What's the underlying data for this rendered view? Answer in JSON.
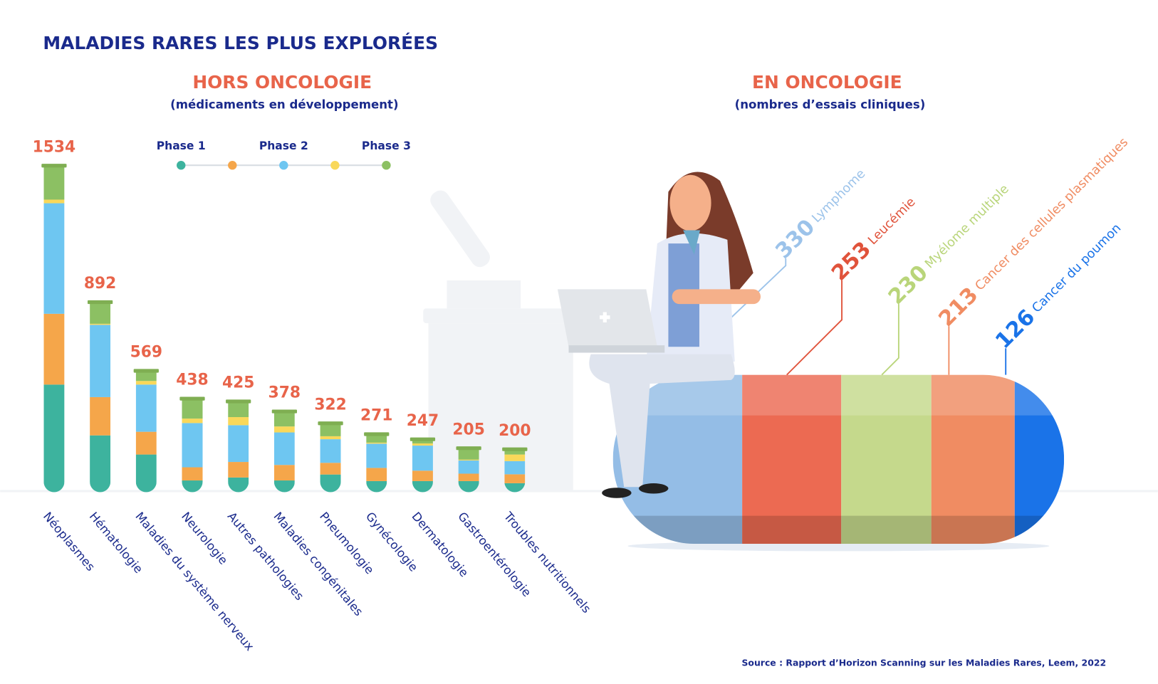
{
  "title": "MALADIES RARES LES PLUS EXPLORÉES",
  "source": "Source : Rapport d’Horizon Scanning sur les Maladies Rares, Leem, 2022",
  "chart_data": [
    {
      "type": "stacked_bar",
      "title": "HORS ONCOLOGIE",
      "subtitle": "(médicaments en développement)",
      "categories": [
        "Néoplasmes",
        "Hématologie",
        "Maladies du système nerveux",
        "Neurologie",
        "Autres pathologies",
        "Maladies congénitales",
        "Pneumologie",
        "Gynécologie",
        "Dermatologie",
        "Gastroentérologie",
        "Troubles nutritionnels"
      ],
      "totals": [
        1534,
        892,
        569,
        438,
        425,
        378,
        322,
        271,
        247,
        205,
        200
      ],
      "series": [
        {
          "name": "Phase 1",
          "color": "#3db39e",
          "values": [
            506,
            267,
            177,
            55,
            69,
            55,
            83,
            52,
            52,
            52,
            42
          ]
        },
        {
          "name": null,
          "color": "#f5a64a",
          "values": [
            333,
            180,
            107,
            62,
            73,
            73,
            55,
            62,
            49,
            35,
            42
          ]
        },
        {
          "name": "Phase 2",
          "color": "#6ec6f1",
          "values": [
            520,
            340,
            222,
            208,
            173,
            153,
            111,
            114,
            118,
            62,
            62
          ]
        },
        {
          "name": null,
          "color": "#f9d85a",
          "values": [
            17,
            5,
            17,
            21,
            38,
            28,
            14,
            5,
            10,
            4,
            31
          ]
        },
        {
          "name": "Phase 3",
          "color": "#8cc063",
          "values": [
            158,
            100,
            46,
            92,
            72,
            69,
            59,
            38,
            18,
            52,
            23
          ]
        }
      ],
      "ylim": [
        0,
        1600
      ]
    },
    {
      "type": "stacked_pill",
      "title": "EN ONCOLOGIE",
      "subtitle": "(nombres d’essais cliniques)",
      "categories": [
        "Lymphome",
        "Leucémie",
        "Myélome multiple",
        "Cancer des cellules plasmatiques",
        "Cancer du poumon"
      ],
      "values": [
        330,
        253,
        230,
        213,
        126
      ],
      "colors": [
        "#94bde6",
        "#ec6a52",
        "#c5d98c",
        "#f08c62",
        "#1a73e8"
      ],
      "label_colors": [
        "#9cc3ea",
        "#e0533b",
        "#b9d57a",
        "#f08c62",
        "#1a73e8"
      ],
      "xlim": [
        0,
        1152
      ]
    }
  ]
}
